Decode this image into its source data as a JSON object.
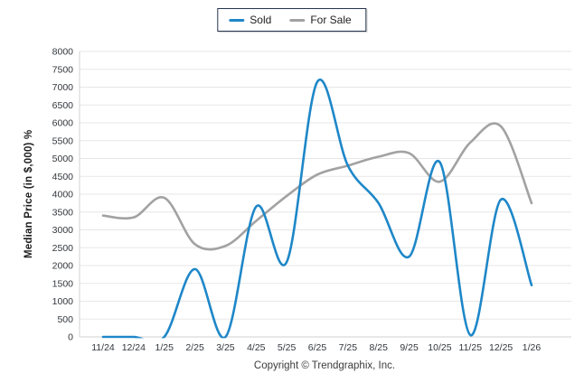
{
  "legend": {
    "items": [
      {
        "label": "Sold",
        "color": "#1e87c8"
      },
      {
        "label": "For Sale",
        "color": "#a2a2a2"
      }
    ],
    "border_color": "#24344f"
  },
  "y_axis_title": "Median Price (in $,000) %",
  "footer": "Copyright © Trendgraphix, Inc.",
  "colors": {
    "gridline": "#e7e7e7",
    "axis_line": "#d2d2d2",
    "tick_label": "#32363b",
    "sold": "#1e87c8",
    "for_sale": "#a2a2a2"
  },
  "chart_data": {
    "type": "line",
    "curve": "spline",
    "categories": [
      "11/24",
      "12/24",
      "1/25",
      "2/25",
      "3/25",
      "4/25",
      "5/25",
      "6/25",
      "7/25",
      "8/25",
      "9/25",
      "10/25",
      "11/25",
      "12/25",
      "1/26"
    ],
    "series": [
      {
        "name": "Sold",
        "color": "#1e87c8",
        "values": [
          0,
          0,
          0,
          1900,
          0,
          3650,
          2100,
          7150,
          4800,
          3750,
          2250,
          4900,
          50,
          3850,
          1450
        ]
      },
      {
        "name": "For Sale",
        "color": "#a2a2a2",
        "values": [
          3400,
          3350,
          3900,
          2600,
          2550,
          3250,
          3950,
          4550,
          4800,
          5050,
          5150,
          4350,
          5450,
          5900,
          3750
        ]
      }
    ],
    "title": "",
    "xlabel": "",
    "ylabel": "Median Price (in $,000) %",
    "ylim": [
      0,
      8000
    ],
    "y_tick_step": 500,
    "grid": "horizontal",
    "legend_position": "top-center",
    "footnote": "Copyright © Trendgraphix, Inc."
  }
}
